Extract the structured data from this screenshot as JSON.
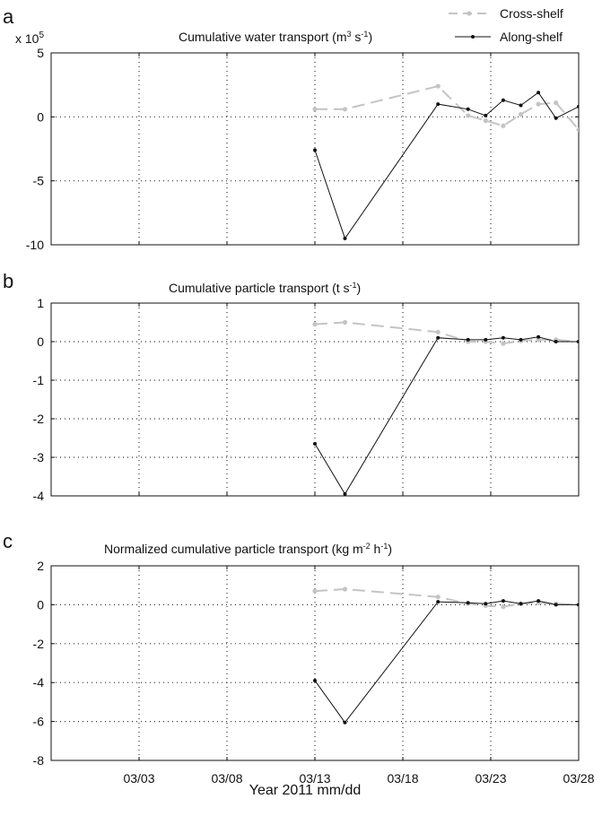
{
  "legend": {
    "items": [
      {
        "label": "Cross-shelf",
        "color": "#c4c4c4",
        "dashed": true
      },
      {
        "label": "Along-shelf",
        "color": "#111111",
        "dashed": false
      }
    ],
    "placement": "top-right"
  },
  "xlabel": "Year 2011 mm/dd",
  "chart_data": [
    {
      "type": "line",
      "panel": "a",
      "title": "Cumulative water transport (m³ s⁻¹)",
      "multiplier": "x 10⁵",
      "xlabel": "Year 2011 mm/dd",
      "xlim": [
        "2011-02-26",
        "2011-03-28"
      ],
      "ylim": [
        -10,
        5
      ],
      "yticks": [
        -10,
        -5,
        0,
        5
      ],
      "xticks": [
        "03/03",
        "03/08",
        "03/13",
        "03/18",
        "03/23",
        "03/28"
      ],
      "grid": true,
      "series": [
        {
          "name": "Cross-shelf",
          "x": [
            "2011-03-13",
            "2011-03-14 17:00",
            "2011-03-20",
            "2011-03-21 17:00",
            "2011-03-22 17:00",
            "2011-03-23 17:00",
            "2011-03-24 17:00",
            "2011-03-25 17:00",
            "2011-03-26 17:00",
            "2011-03-28"
          ],
          "y": [
            0.6,
            0.6,
            2.4,
            0.1,
            -0.3,
            -0.7,
            0.2,
            1.0,
            1.1,
            -1.0
          ]
        },
        {
          "name": "Along-shelf",
          "x": [
            "2011-03-13",
            "2011-03-14 17:00",
            "2011-03-20",
            "2011-03-21 17:00",
            "2011-03-22 17:00",
            "2011-03-23 17:00",
            "2011-03-24 17:00",
            "2011-03-25 17:00",
            "2011-03-26 17:00",
            "2011-03-28"
          ],
          "y": [
            -2.6,
            -9.5,
            1.0,
            0.6,
            0.1,
            1.3,
            0.9,
            1.9,
            -0.1,
            0.8
          ]
        }
      ]
    },
    {
      "type": "line",
      "panel": "b",
      "title": "Cumulative particle transport (t s⁻¹)",
      "xlabel": "Year 2011 mm/dd",
      "xlim": [
        "2011-02-26",
        "2011-03-28"
      ],
      "ylim": [
        -4,
        1
      ],
      "yticks": [
        -4,
        -3,
        -2,
        -1,
        0,
        1
      ],
      "xticks": [
        "03/03",
        "03/08",
        "03/13",
        "03/18",
        "03/23",
        "03/28"
      ],
      "grid": true,
      "series": [
        {
          "name": "Cross-shelf",
          "x": [
            "2011-03-13",
            "2011-03-14 17:00",
            "2011-03-20",
            "2011-03-21 17:00",
            "2011-03-22 17:00",
            "2011-03-23 17:00",
            "2011-03-24 17:00",
            "2011-03-25 17:00",
            "2011-03-26 17:00",
            "2011-03-28"
          ],
          "y": [
            0.45,
            0.5,
            0.25,
            0.0,
            0.0,
            -0.05,
            0.02,
            0.05,
            0.05,
            0.0
          ]
        },
        {
          "name": "Along-shelf",
          "x": [
            "2011-03-13",
            "2011-03-14 17:00",
            "2011-03-20",
            "2011-03-21 17:00",
            "2011-03-22 17:00",
            "2011-03-23 17:00",
            "2011-03-24 17:00",
            "2011-03-25 17:00",
            "2011-03-26 17:00",
            "2011-03-28"
          ],
          "y": [
            -2.65,
            -3.95,
            0.1,
            0.05,
            0.05,
            0.1,
            0.05,
            0.12,
            0.0,
            0.0
          ]
        }
      ]
    },
    {
      "type": "line",
      "panel": "c",
      "title": "Normalized cumulative particle transport (kg m⁻² h⁻¹)",
      "xlabel": "Year 2011 mm/dd",
      "xlim": [
        "2011-02-26",
        "2011-03-28"
      ],
      "ylim": [
        -8,
        2
      ],
      "yticks": [
        -8,
        -6,
        -4,
        -2,
        0,
        2
      ],
      "xticks": [
        "03/03",
        "03/08",
        "03/13",
        "03/18",
        "03/23",
        "03/28"
      ],
      "grid": true,
      "series": [
        {
          "name": "Cross-shelf",
          "x": [
            "2011-03-13",
            "2011-03-14 17:00",
            "2011-03-20",
            "2011-03-21 17:00",
            "2011-03-22 17:00",
            "2011-03-23 17:00",
            "2011-03-24 17:00",
            "2011-03-25 17:00",
            "2011-03-26 17:00",
            "2011-03-28"
          ],
          "y": [
            0.7,
            0.8,
            0.4,
            0.05,
            -0.05,
            -0.1,
            0.05,
            0.1,
            0.05,
            0.0
          ]
        },
        {
          "name": "Along-shelf",
          "x": [
            "2011-03-13",
            "2011-03-14 17:00",
            "2011-03-20",
            "2011-03-21 17:00",
            "2011-03-22 17:00",
            "2011-03-23 17:00",
            "2011-03-24 17:00",
            "2011-03-25 17:00",
            "2011-03-26 17:00",
            "2011-03-28"
          ],
          "y": [
            -3.9,
            -6.05,
            0.15,
            0.1,
            0.05,
            0.2,
            0.05,
            0.2,
            0.0,
            0.0
          ]
        }
      ]
    }
  ]
}
